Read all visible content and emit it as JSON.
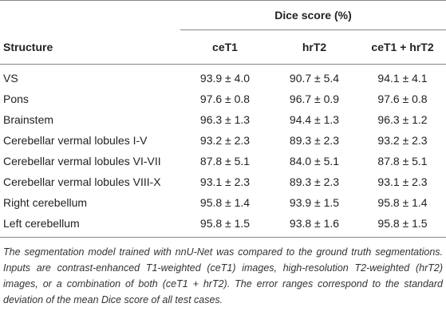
{
  "table": {
    "group_header": "Dice score (%)",
    "columns": [
      "Structure",
      "ceT1",
      "hrT2",
      "ceT1 + hrT2"
    ],
    "rows": [
      [
        "VS",
        "93.9 ± 4.0",
        "90.7 ± 5.4",
        "94.1 ± 4.1"
      ],
      [
        "Pons",
        "97.6 ± 0.8",
        "96.7 ± 0.9",
        "97.6 ± 0.8"
      ],
      [
        "Brainstem",
        "96.3 ± 1.3",
        "94.4 ± 1.3",
        "96.3 ± 1.2"
      ],
      [
        "Cerebellar vermal lobules I-V",
        "93.2 ± 2.3",
        "89.3 ± 2.3",
        "93.2 ± 2.3"
      ],
      [
        "Cerebellar vermal lobules VI-VII",
        "87.8 ± 5.1",
        "84.0 ± 5.1",
        "87.8 ± 5.1"
      ],
      [
        "Cerebellar vermal lobules VIII-X",
        "93.1 ± 2.3",
        "89.3 ± 2.3",
        "93.1 ± 2.3"
      ],
      [
        "Right cerebellum",
        "95.8 ± 1.4",
        "93.9 ± 1.5",
        "95.8 ± 1.4"
      ],
      [
        "Left cerebellum",
        "95.8 ± 1.5",
        "93.8 ± 1.6",
        "95.8 ± 1.5"
      ]
    ],
    "caption": "The segmentation model trained with nnU-Net was compared to the ground truth segmentations. Inputs are contrast-enhanced T1-weighted (ceT1) images, high-resolution T2-weighted (hrT2) images, or a combination of both (ceT1 + hrT2). The error ranges correspond to the standard deviation of the mean Dice score of all test cases."
  }
}
